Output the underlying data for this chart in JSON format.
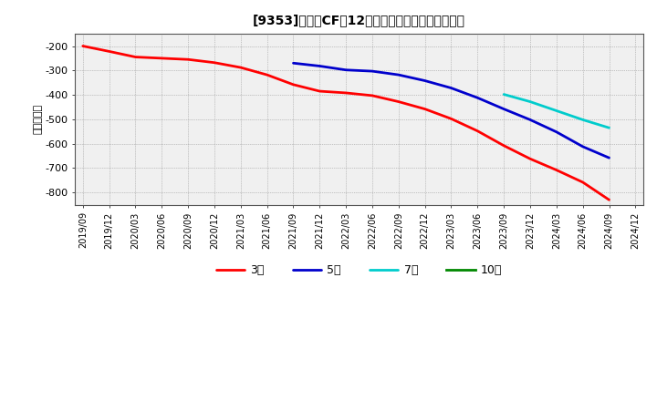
{
  "title": "[9353]　投資CFの12か月移動合計の平均値の推移",
  "ylabel": "（百万円）",
  "background_color": "#ffffff",
  "plot_bg_color": "#f0f0f0",
  "ylim": [
    -850,
    -150
  ],
  "yticks": [
    -800,
    -700,
    -600,
    -500,
    -400,
    -300,
    -200
  ],
  "series": {
    "3year": {
      "color": "#ff0000",
      "label": "3年",
      "points": [
        [
          "2019/09",
          -200
        ],
        [
          "2019/12",
          -222
        ],
        [
          "2020/03",
          -245
        ],
        [
          "2020/06",
          -250
        ],
        [
          "2020/09",
          -255
        ],
        [
          "2020/12",
          -268
        ],
        [
          "2021/03",
          -288
        ],
        [
          "2021/06",
          -318
        ],
        [
          "2021/09",
          -358
        ],
        [
          "2021/12",
          -385
        ],
        [
          "2022/03",
          -392
        ],
        [
          "2022/06",
          -403
        ],
        [
          "2022/09",
          -428
        ],
        [
          "2022/12",
          -458
        ],
        [
          "2023/03",
          -498
        ],
        [
          "2023/06",
          -548
        ],
        [
          "2023/09",
          -608
        ],
        [
          "2023/12",
          -662
        ],
        [
          "2024/03",
          -708
        ],
        [
          "2024/06",
          -758
        ],
        [
          "2024/09",
          -830
        ]
      ]
    },
    "5year": {
      "color": "#0000cc",
      "label": "5年",
      "points": [
        [
          "2021/09",
          -270
        ],
        [
          "2021/12",
          -282
        ],
        [
          "2022/03",
          -298
        ],
        [
          "2022/06",
          -303
        ],
        [
          "2022/09",
          -318
        ],
        [
          "2022/12",
          -342
        ],
        [
          "2023/03",
          -372
        ],
        [
          "2023/06",
          -412
        ],
        [
          "2023/09",
          -458
        ],
        [
          "2023/12",
          -502
        ],
        [
          "2024/03",
          -552
        ],
        [
          "2024/06",
          -612
        ],
        [
          "2024/09",
          -658
        ]
      ]
    },
    "7year": {
      "color": "#00cccc",
      "label": "7年",
      "points": [
        [
          "2023/09",
          -398
        ],
        [
          "2023/12",
          -428
        ],
        [
          "2024/03",
          -465
        ],
        [
          "2024/06",
          -502
        ],
        [
          "2024/09",
          -535
        ]
      ]
    },
    "10year": {
      "color": "#008800",
      "label": "10年",
      "points": []
    }
  },
  "xtick_labels": [
    "2019/09",
    "2019/12",
    "2020/03",
    "2020/06",
    "2020/09",
    "2020/12",
    "2021/03",
    "2021/06",
    "2021/09",
    "2021/12",
    "2022/03",
    "2022/06",
    "2022/09",
    "2022/12",
    "2023/03",
    "2023/06",
    "2023/09",
    "2023/12",
    "2024/03",
    "2024/06",
    "2024/09",
    "2024/12"
  ]
}
